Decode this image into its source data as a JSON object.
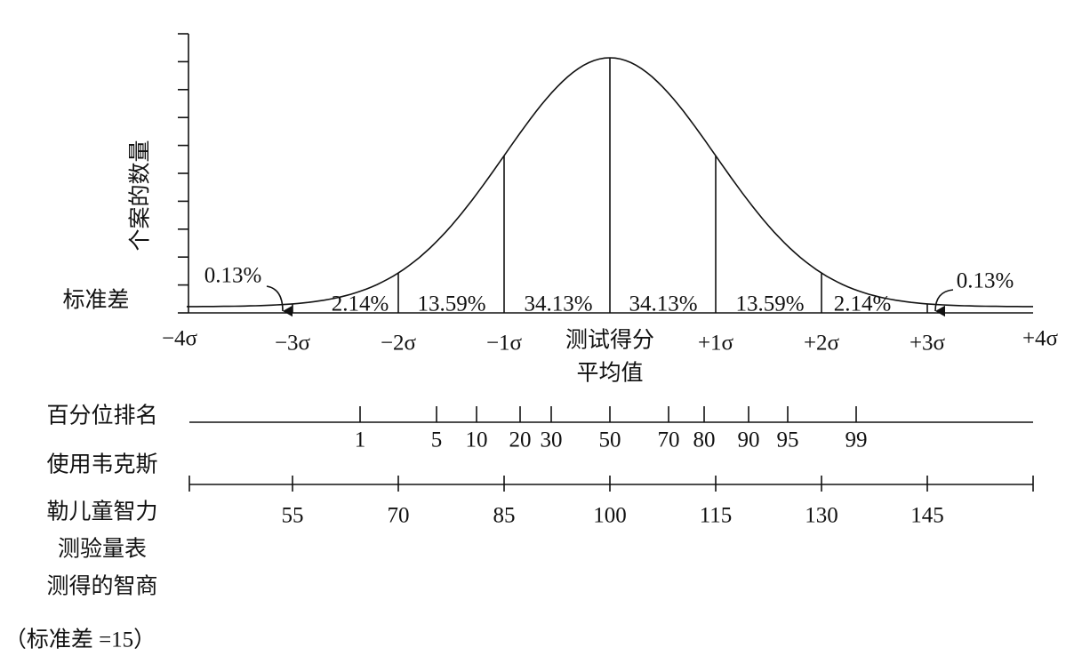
{
  "curve": {
    "y_axis_title": "个案的数量",
    "baseline_label": "标准差",
    "sigma_labels": [
      "−4σ",
      "−3σ",
      "−2σ",
      "−1σ",
      "+1σ",
      "+2σ",
      "+3σ",
      "+4σ"
    ],
    "area_percentages": [
      "2.14%",
      "13.59%",
      "34.13%",
      "34.13%",
      "13.59%",
      "2.14%"
    ],
    "tail_left": "0.13%",
    "tail_right": "0.13%",
    "mean_label": [
      "测试得分",
      "平均值"
    ]
  },
  "percentile": {
    "title": "百分位排名",
    "labels": [
      "1",
      "5",
      "10",
      "20",
      "30",
      "50",
      "70",
      "80",
      "90",
      "95",
      "99"
    ]
  },
  "iq": {
    "title_lines": [
      "使用韦克斯",
      "勒儿童智力",
      "测验量表",
      "测得的智商"
    ],
    "note": "（标准差 =15）",
    "labels": [
      "55",
      "70",
      "85",
      "100",
      "115",
      "130",
      "145"
    ]
  }
}
